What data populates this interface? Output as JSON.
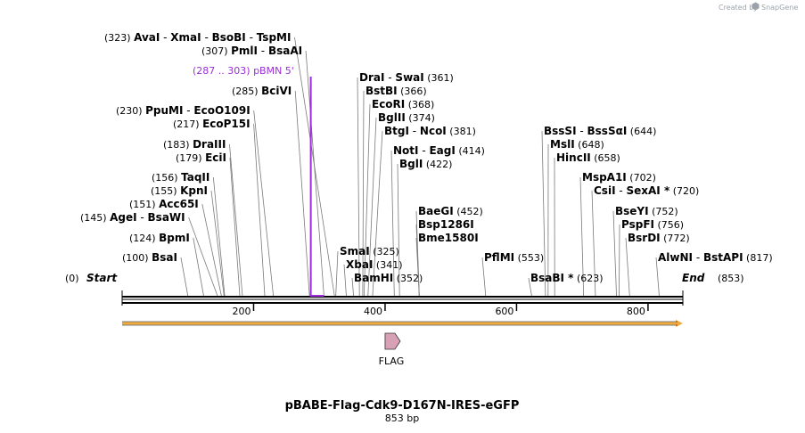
{
  "credit": {
    "prefix": "Created by",
    "brand": "SnapGene",
    "icon": "snapgene-logo-icon"
  },
  "plasmid": {
    "name": "pBABE-Flag-Cdk9-D167N-IRES-eGFP",
    "length_text": "853 bp",
    "length_bp": 853
  },
  "ends": {
    "start_label": "Start",
    "start_pos": "(0)",
    "end_label": "End",
    "end_pos": "(853)"
  },
  "ruler": {
    "ticks": [
      {
        "value": 200,
        "label": "200"
      },
      {
        "value": 400,
        "label": "400"
      },
      {
        "value": 600,
        "label": "600"
      },
      {
        "value": 800,
        "label": "800"
      }
    ]
  },
  "primer": {
    "label": "pBMN 5'",
    "range": "(287 .. 303)",
    "start_bp": 287,
    "end_bp": 303,
    "color": "#9b30d9"
  },
  "feature": {
    "label": "FLAG",
    "bp": 400,
    "color": "#d8a0b4"
  },
  "orf": {
    "start_bp": 0,
    "end_bp": 853,
    "color": "#f2a93b"
  },
  "site_rows": [
    {
      "id": "avai",
      "pos": "(323)",
      "names": [
        "AvaI",
        "XmaI",
        "BsoBI",
        "TspMI"
      ],
      "bp": [
        323
      ]
    },
    {
      "id": "pmli",
      "pos": "(307)",
      "names": [
        "PmlI",
        "BsaAI"
      ],
      "bp": [
        307
      ]
    },
    {
      "id": "bcivi",
      "pos": "(285)",
      "names": [
        "BciVI"
      ],
      "bp": [
        285
      ]
    },
    {
      "id": "ppumi",
      "pos": "(230)",
      "names": [
        "PpuMI",
        "EcoO109I"
      ],
      "bp": [
        230
      ]
    },
    {
      "id": "ecop15i",
      "pos": "(217)",
      "names": [
        "EcoP15I"
      ],
      "bp": [
        217
      ]
    },
    {
      "id": "draiii",
      "pos": "(183)",
      "names": [
        "DraIII"
      ],
      "bp": [
        183
      ]
    },
    {
      "id": "ecii",
      "pos": "(179)",
      "names": [
        "EciI"
      ],
      "bp": [
        179
      ]
    },
    {
      "id": "taqii",
      "pos": "(156)",
      "names": [
        "TaqII"
      ],
      "bp": [
        156
      ]
    },
    {
      "id": "kpni",
      "pos": "(155)",
      "names": [
        "KpnI"
      ],
      "bp": [
        155
      ]
    },
    {
      "id": "acc65i",
      "pos": "(151)",
      "names": [
        "Acc65I"
      ],
      "bp": [
        151
      ]
    },
    {
      "id": "agei",
      "pos": "(145)",
      "names": [
        "AgeI",
        "BsaWI"
      ],
      "bp": [
        145
      ]
    },
    {
      "id": "bpmi",
      "pos": "(124)",
      "names": [
        "BpmI"
      ],
      "bp": [
        124
      ]
    },
    {
      "id": "bsai",
      "pos": "(100)",
      "names": [
        "BsaI"
      ],
      "bp": [
        100
      ]
    },
    {
      "id": "drai",
      "pos": "(361)",
      "names": [
        "DraI",
        "SwaI"
      ],
      "bp": [
        361
      ]
    },
    {
      "id": "bstbi",
      "pos": "(366)",
      "names": [
        "BstBI"
      ],
      "bp": [
        366
      ]
    },
    {
      "id": "ecori",
      "pos": "(368)",
      "names": [
        "EcoRI"
      ],
      "bp": [
        368
      ]
    },
    {
      "id": "bglii",
      "pos": "(374)",
      "names": [
        "BglII"
      ],
      "bp": [
        374
      ]
    },
    {
      "id": "btgi",
      "pos": "(381)",
      "names": [
        "BtgI",
        "NcoI"
      ],
      "bp": [
        381
      ]
    },
    {
      "id": "noti",
      "pos": "(414)",
      "names": [
        "NotI",
        "EagI"
      ],
      "bp": [
        414
      ]
    },
    {
      "id": "bgli",
      "pos": "(422)",
      "names": [
        "BglI"
      ],
      "bp": [
        422
      ]
    },
    {
      "id": "baegi",
      "pos": "(452)",
      "names": [
        "BaeGI"
      ],
      "bp": [
        452
      ]
    },
    {
      "id": "bsp1286i",
      "pos": "",
      "names": [
        "Bsp1286I"
      ],
      "bp": [
        452
      ]
    },
    {
      "id": "bme1580i",
      "pos": "",
      "names": [
        "Bme1580I"
      ],
      "bp": [
        452
      ]
    },
    {
      "id": "smai",
      "pos": "(325)",
      "names": [
        "SmaI"
      ],
      "bp": [
        325
      ]
    },
    {
      "id": "xbai",
      "pos": "(341)",
      "names": [
        "XbaI"
      ],
      "bp": [
        341
      ]
    },
    {
      "id": "bamhi",
      "pos": "(352)",
      "names": [
        "BamHI"
      ],
      "bp": [
        352
      ]
    },
    {
      "id": "pflmi",
      "pos": "(553)",
      "names": [
        "PflMI"
      ],
      "bp": [
        553
      ]
    },
    {
      "id": "bssi",
      "pos": "(644)",
      "names": [
        "BssSI",
        "BssSαI"
      ],
      "bp": [
        644
      ]
    },
    {
      "id": "msli",
      "pos": "(648)",
      "names": [
        "MslI"
      ],
      "bp": [
        648
      ]
    },
    {
      "id": "hincii",
      "pos": "(658)",
      "names": [
        "HincII"
      ],
      "bp": [
        658
      ]
    },
    {
      "id": "bsabi",
      "pos": "(623)",
      "names": [
        "BsaBI *"
      ],
      "bp": [
        623
      ]
    },
    {
      "id": "mspa1i",
      "pos": "(702)",
      "names": [
        "MspA1I"
      ],
      "bp": [
        702
      ]
    },
    {
      "id": "csii",
      "pos": "(720)",
      "names": [
        "CsiI",
        "SexAI *"
      ],
      "bp": [
        720
      ]
    },
    {
      "id": "bseyi",
      "pos": "(752)",
      "names": [
        "BseYI"
      ],
      "bp": [
        752
      ]
    },
    {
      "id": "pspfi",
      "pos": "(756)",
      "names": [
        "PspFI"
      ],
      "bp": [
        756
      ]
    },
    {
      "id": "bsrdi",
      "pos": "(772)",
      "names": [
        "BsrDI"
      ],
      "bp": [
        772
      ]
    },
    {
      "id": "alwni",
      "pos": "(817)",
      "names": [
        "AlwNI",
        "BstAPI"
      ],
      "bp": [
        817
      ]
    }
  ]
}
